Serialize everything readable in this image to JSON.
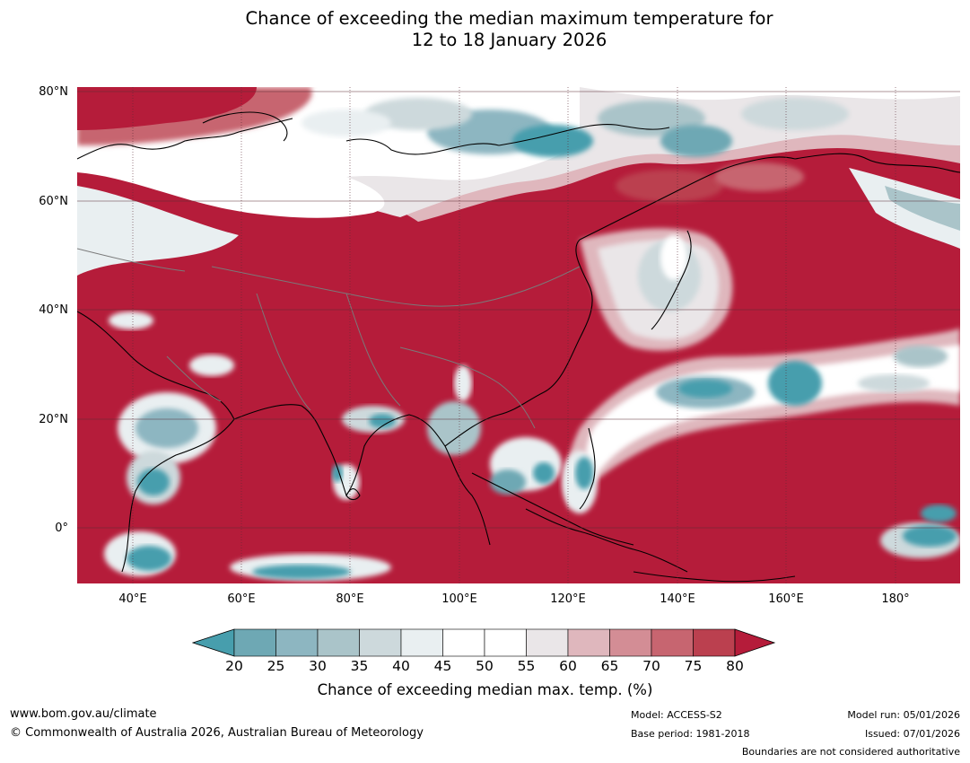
{
  "title": {
    "line1": "Chance of exceeding the median maximum temperature for",
    "line2": "12 to 18 January 2026"
  },
  "map": {
    "lat_labels": [
      "80°N",
      "60°N",
      "40°N",
      "20°N",
      "0°"
    ],
    "lon_labels": [
      "40°E",
      "60°E",
      "80°E",
      "100°E",
      "120°E",
      "140°E",
      "160°E",
      "180°"
    ]
  },
  "colorbar": {
    "ticks": [
      "20",
      "25",
      "30",
      "35",
      "40",
      "45",
      "50",
      "55",
      "60",
      "65",
      "70",
      "75",
      "80"
    ],
    "colors": [
      "#479ead",
      "#6ea8b4",
      "#8db6c1",
      "#aac4c9",
      "#cdd9dc",
      "#e9eff1",
      "#ffffff",
      "#ffffff",
      "#eae6e8",
      "#dfb7bd",
      "#d38d95",
      "#c76570",
      "#bb404f",
      "#b51c3a"
    ],
    "label": "Chance of exceeding median max. temp. (%)"
  },
  "footer": {
    "url": "www.bom.gov.au/climate",
    "copyright": "© Commonwealth of Australia 2026, Australian Bureau of Meteorology",
    "model": "Model: ACCESS-S2",
    "base_period": "Base period: 1981-2018",
    "model_run": "Model run: 05/01/2026",
    "issued": "Issued: 07/01/2026",
    "disclaimer": "Boundaries are not considered authoritative"
  }
}
